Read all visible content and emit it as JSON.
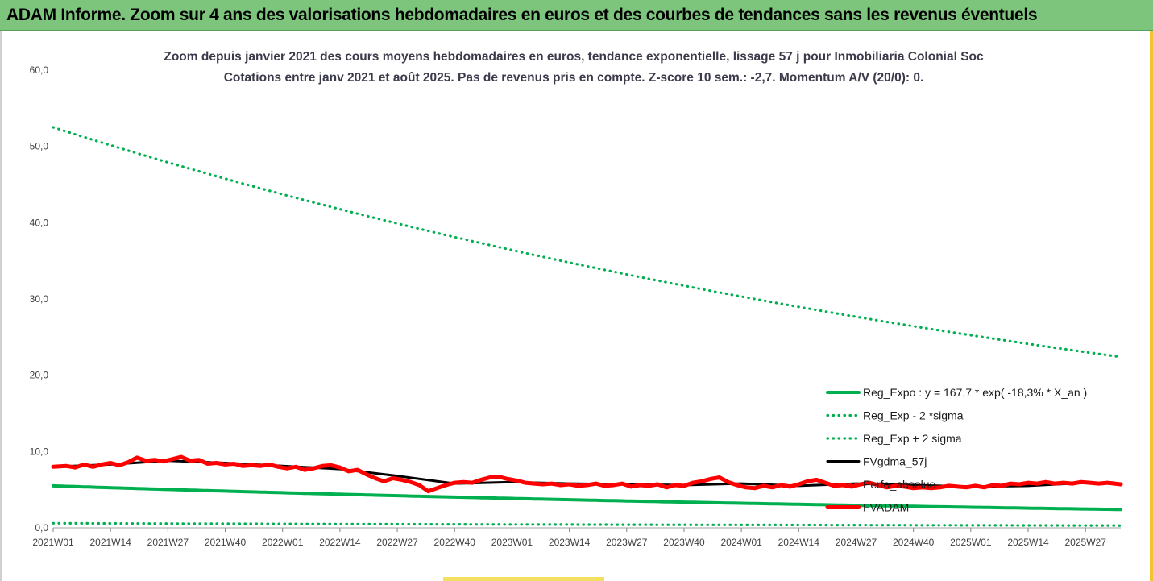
{
  "banner": {
    "title": "ADAM Informe. Zoom sur 4 ans des valorisations hebdomadaires en euros et des courbes de tendances sans les revenus éventuels"
  },
  "chart_data": {
    "type": "line",
    "title": "Zoom depuis janvier 2021 des cours moyens hebdomadaires en euros, tendance exponentielle, lissage 57 j pour Inmobiliaria Colonial Soc",
    "subtitle": "Cotations entre janv 2021 et août 2025.  Pas de revenus pris en compte.  Z-score 10 sem.: -2,7. Momentum A/V (20/0): 0.",
    "xlabel": "",
    "ylabel": "",
    "ylim": [
      0,
      60
    ],
    "y_ticks": [
      "0,0",
      "10,0",
      "20,0",
      "30,0",
      "40,0",
      "50,0",
      "60,0"
    ],
    "x_ticks": [
      "2021W01",
      "2021W14",
      "2021W27",
      "2021W40",
      "2022W01",
      "2022W14",
      "2022W27",
      "2022W40",
      "2023W01",
      "2023W14",
      "2023W27",
      "2023W40",
      "2024W01",
      "2024W14",
      "2024W27",
      "2024W40",
      "2025W01",
      "2025W14",
      "2025W27"
    ],
    "x_range_weeks": [
      0,
      242
    ],
    "grid": false,
    "legend_position": "right",
    "colors": {
      "green": "#00b050",
      "black": "#000000",
      "red": "#ff0000"
    },
    "series": [
      {
        "name": "Reg_Expo : y = 167,7 * exp( -18,3% *  X_an )",
        "style": "solid-green",
        "x": [
          0,
          242
        ],
        "values": [
          5.5,
          2.4
        ],
        "model": "exponential"
      },
      {
        "name": "Reg_Exp - 2 *sigma",
        "style": "dotted-green",
        "x": [
          0,
          242
        ],
        "values": [
          0.6,
          0.3
        ],
        "model": "exponential"
      },
      {
        "name": "Reg_Exp + 2 sigma",
        "style": "dotted-green",
        "x": [
          0,
          242
        ],
        "values": [
          52.5,
          22.4
        ],
        "model": "exponential"
      },
      {
        "name": "FVgdma_57j",
        "style": "solid-black",
        "x": [
          0,
          13,
          26,
          39,
          52,
          65,
          78,
          91,
          104,
          117,
          130,
          143,
          156,
          169,
          182,
          195,
          208,
          221,
          234,
          242
        ],
        "values": [
          8.0,
          8.3,
          8.8,
          8.5,
          8.1,
          7.7,
          6.8,
          5.8,
          6.0,
          5.8,
          5.7,
          5.6,
          5.8,
          5.5,
          5.8,
          5.6,
          5.4,
          5.5,
          5.9,
          5.8
        ]
      },
      {
        "name": "Perfo_absolue",
        "style": "dotted-red",
        "x": [],
        "values": []
      },
      {
        "name": "FVADAM",
        "style": "solid-red",
        "x": [
          0,
          3,
          5,
          7,
          9,
          11,
          13,
          15,
          17,
          19,
          21,
          23,
          25,
          27,
          29,
          31,
          33,
          35,
          37,
          39,
          41,
          43,
          45,
          47,
          49,
          51,
          53,
          55,
          57,
          59,
          61,
          63,
          65,
          67,
          69,
          71,
          73,
          75,
          77,
          79,
          81,
          83,
          85,
          87,
          89,
          91,
          93,
          95,
          97,
          99,
          101,
          103,
          105,
          107,
          109,
          111,
          113,
          115,
          117,
          119,
          121,
          123,
          125,
          127,
          129,
          131,
          133,
          135,
          137,
          139,
          141,
          143,
          145,
          147,
          149,
          151,
          153,
          155,
          157,
          159,
          161,
          163,
          165,
          167,
          169,
          171,
          173,
          175,
          177,
          179,
          181,
          183,
          185,
          187,
          189,
          191,
          193,
          195,
          197,
          199,
          201,
          203,
          205,
          207,
          209,
          211,
          213,
          215,
          217,
          219,
          221,
          223,
          225,
          227,
          229,
          231,
          233,
          235,
          237,
          239,
          242
        ],
        "values": [
          8.0,
          8.1,
          7.9,
          8.3,
          8.0,
          8.3,
          8.5,
          8.2,
          8.6,
          9.2,
          8.8,
          8.9,
          8.7,
          9.0,
          9.3,
          8.8,
          8.9,
          8.4,
          8.5,
          8.3,
          8.4,
          8.1,
          8.2,
          8.1,
          8.3,
          8.0,
          7.8,
          8.0,
          7.6,
          7.8,
          8.1,
          8.2,
          7.9,
          7.4,
          7.6,
          7.0,
          6.5,
          6.1,
          6.5,
          6.3,
          6.0,
          5.6,
          4.8,
          5.2,
          5.6,
          5.9,
          6.0,
          5.9,
          6.3,
          6.6,
          6.7,
          6.4,
          6.2,
          5.9,
          5.8,
          5.7,
          5.8,
          5.6,
          5.7,
          5.5,
          5.6,
          5.8,
          5.5,
          5.6,
          5.8,
          5.4,
          5.6,
          5.5,
          5.7,
          5.3,
          5.6,
          5.5,
          5.9,
          6.1,
          6.4,
          6.6,
          6.0,
          5.6,
          5.3,
          5.2,
          5.5,
          5.3,
          5.6,
          5.4,
          5.7,
          6.1,
          6.3,
          5.9,
          5.5,
          5.6,
          5.4,
          5.7,
          5.9,
          5.6,
          5.3,
          5.5,
          5.4,
          5.2,
          5.3,
          5.2,
          5.3,
          5.5,
          5.4,
          5.3,
          5.5,
          5.3,
          5.6,
          5.5,
          5.8,
          5.7,
          5.9,
          5.8,
          6.0,
          5.8,
          5.9,
          5.8,
          6.0,
          5.9,
          5.8,
          5.9,
          5.7
        ]
      }
    ]
  }
}
